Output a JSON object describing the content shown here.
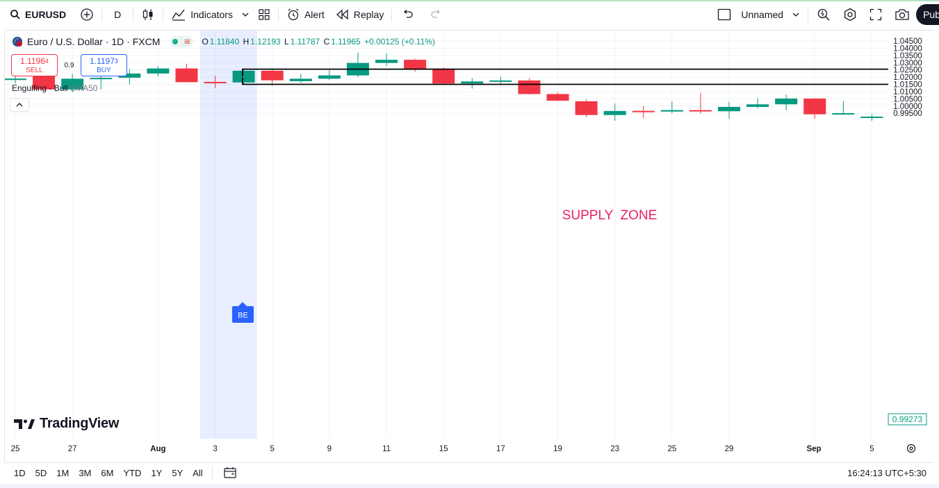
{
  "toolbar": {
    "symbol": "EURUSD",
    "interval": "D",
    "indicators_label": "Indicators",
    "alert_label": "Alert",
    "replay_label": "Replay",
    "layout_name": "Unnamed",
    "publish_label": "Pub"
  },
  "legend": {
    "title": "Euro / U.S. Dollar · 1D · FXCM",
    "open_key": "O",
    "open": "1.11840",
    "high_key": "H",
    "high": "1.12193",
    "low_key": "L",
    "low": "1.11787",
    "close_key": "C",
    "close": "1.11965",
    "change": "+0.00125 (+0.11%)"
  },
  "trade": {
    "sell_price_main": "1.1196",
    "sell_price_small": "4",
    "sell_label": "SELL",
    "spread": "0.9",
    "buy_price_main": "1.1197",
    "buy_price_small": "3",
    "buy_label": "BUY"
  },
  "indicator": {
    "name": "Engulfing - Bull",
    "param": "SMA50"
  },
  "watermark": "TradingView",
  "bottombar": {
    "ranges": [
      "1D",
      "5D",
      "1M",
      "3M",
      "6M",
      "YTD",
      "1Y",
      "5Y",
      "All"
    ],
    "clock": "16:24:13 UTC+5:30"
  },
  "chart_data": {
    "type": "candlestick",
    "y_axis_labels": [
      "1.04500",
      "1.04000",
      "1.03500",
      "1.03000",
      "1.02500",
      "1.02000",
      "1.01500",
      "1.01000",
      "1.00500",
      "1.00000",
      "0.99500"
    ],
    "ylim": [
      0.993,
      1.046
    ],
    "x_axis_labels": [
      "25",
      "27",
      "Aug",
      "3",
      "5",
      "9",
      "11",
      "15",
      "17",
      "19",
      "23",
      "25",
      "29",
      "Sep",
      "5"
    ],
    "last_price_label": "0.99273",
    "zone_label": "SUPPLY  ZONE",
    "zone": {
      "top": 1.0255,
      "bottom": 1.015
    },
    "marker_label": "BE",
    "up_color": "#089981",
    "down_color": "#f23645",
    "candles": [
      {
        "o": 1.018,
        "h": 1.0257,
        "l": 1.0155,
        "c": 1.019
      },
      {
        "o": 1.0218,
        "h": 1.025,
        "l": 1.0109,
        "c": 1.0115
      },
      {
        "o": 1.0115,
        "h": 1.0222,
        "l": 1.0095,
        "c": 1.0189
      },
      {
        "o": 1.0187,
        "h": 1.0235,
        "l": 1.0115,
        "c": 1.0195
      },
      {
        "o": 1.0196,
        "h": 1.0255,
        "l": 1.0148,
        "c": 1.0225
      },
      {
        "o": 1.0225,
        "h": 1.0276,
        "l": 1.0205,
        "c": 1.026
      },
      {
        "o": 1.026,
        "h": 1.0293,
        "l": 1.0162,
        "c": 1.0165
      },
      {
        "o": 1.0167,
        "h": 1.021,
        "l": 1.0123,
        "c": 1.0163
      },
      {
        "o": 1.0163,
        "h": 1.0255,
        "l": 1.015,
        "c": 1.0244
      },
      {
        "o": 1.0244,
        "h": 1.0252,
        "l": 1.0141,
        "c": 1.0178
      },
      {
        "o": 1.0172,
        "h": 1.0222,
        "l": 1.016,
        "c": 1.0189
      },
      {
        "o": 1.0189,
        "h": 1.0247,
        "l": 1.018,
        "c": 1.0212
      },
      {
        "o": 1.0212,
        "h": 1.0369,
        "l": 1.02,
        "c": 1.0298
      },
      {
        "o": 1.0298,
        "h": 1.0364,
        "l": 1.0275,
        "c": 1.032
      },
      {
        "o": 1.032,
        "h": 1.0327,
        "l": 1.0237,
        "c": 1.0255
      },
      {
        "o": 1.0256,
        "h": 1.0268,
        "l": 1.0154,
        "c": 1.0156
      },
      {
        "o": 1.0156,
        "h": 1.0194,
        "l": 1.0121,
        "c": 1.017
      },
      {
        "o": 1.017,
        "h": 1.0202,
        "l": 1.0145,
        "c": 1.0177
      },
      {
        "o": 1.0177,
        "h": 1.0192,
        "l": 1.008,
        "c": 1.0083
      },
      {
        "o": 1.0083,
        "h": 1.0095,
        "l": 1.0034,
        "c": 1.0037
      },
      {
        "o": 1.0033,
        "h": 1.0046,
        "l": 0.9923,
        "c": 0.9938
      },
      {
        "o": 0.9938,
        "h": 1.0018,
        "l": 0.9898,
        "c": 0.9966
      },
      {
        "o": 0.9967,
        "h": 1.0,
        "l": 0.9915,
        "c": 0.9962
      },
      {
        "o": 0.9962,
        "h": 1.0033,
        "l": 0.995,
        "c": 0.9972
      },
      {
        "o": 0.9972,
        "h": 1.009,
        "l": 0.9948,
        "c": 0.9964
      },
      {
        "o": 0.9964,
        "h": 1.0029,
        "l": 0.9911,
        "c": 0.9994
      },
      {
        "o": 0.9994,
        "h": 1.0055,
        "l": 0.9983,
        "c": 1.0012
      },
      {
        "o": 1.0012,
        "h": 1.0079,
        "l": 0.997,
        "c": 1.0052
      },
      {
        "o": 1.0052,
        "h": 1.0055,
        "l": 0.9913,
        "c": 0.9943
      },
      {
        "o": 0.9943,
        "h": 1.0034,
        "l": 0.994,
        "c": 0.9951
      },
      {
        "o": 0.992,
        "h": 0.9943,
        "l": 0.9898,
        "c": 0.9927
      }
    ]
  }
}
